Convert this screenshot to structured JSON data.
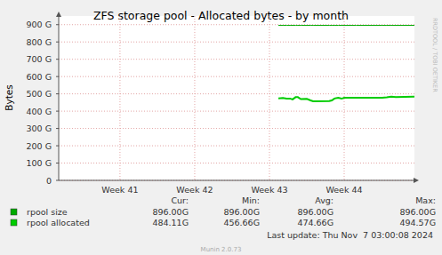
{
  "chart_data": {
    "type": "line",
    "title": "ZFS storage pool - Allocated bytes - by month",
    "y_label": "Bytes",
    "x": [
      43.62,
      43.68,
      43.73,
      43.775,
      43.81,
      43.85,
      43.88,
      43.92,
      44.0,
      44.05,
      44.085,
      44.3,
      44.335,
      44.37,
      44.42,
      44.465,
      44.5,
      44.66,
      45.01,
      45.07,
      45.13,
      45.19,
      45.44
    ],
    "xlim": [
      40.68,
      45.44
    ],
    "xticks": [
      {
        "value": 41.5,
        "label": "Week 41"
      },
      {
        "value": 42.5,
        "label": "Week 42"
      },
      {
        "value": 43.5,
        "label": "Week 43"
      },
      {
        "value": 44.5,
        "label": "Week 44"
      }
    ],
    "ylim": [
      0,
      950
    ],
    "yticks": [
      0,
      {
        "value": 100,
        "label": "100 G"
      },
      {
        "value": 200,
        "label": "200 G"
      },
      {
        "value": 300,
        "label": "300 G"
      },
      {
        "value": 400,
        "label": "400 G"
      },
      {
        "value": 500,
        "label": "500 G"
      },
      {
        "value": 600,
        "label": "600 G"
      },
      {
        "value": 700,
        "label": "700 G"
      },
      {
        "value": 800,
        "label": "800 G"
      },
      {
        "value": 900,
        "label": "900 G"
      }
    ],
    "grid": true,
    "stats_headers": [
      "Cur:",
      "Min:",
      "Avg:",
      "Max:"
    ],
    "series": [
      {
        "name": "rpool size",
        "color": "#00aa00",
        "values": [
          896,
          896,
          896,
          896,
          896,
          896,
          896,
          896,
          896,
          896,
          896,
          896,
          896,
          896,
          896,
          896,
          896,
          896,
          896,
          896,
          896,
          896,
          896
        ],
        "stats": [
          "896.00G",
          "896.00G",
          "896.00G",
          "896.00G"
        ]
      },
      {
        "name": "rpool allocated",
        "color": "#00cc00",
        "values": [
          474,
          476,
          472,
          473,
          468,
          481,
          481,
          470,
          471,
          462,
          457,
          458,
          462,
          473,
          477,
          472,
          477,
          477,
          477,
          480,
          484,
          482,
          484.11
        ],
        "stats": [
          "484.11G",
          "456.66G",
          "474.66G",
          "494.57G"
        ]
      }
    ],
    "last_update": "Last update: Thu Nov  7 03:00:08 2024",
    "credit": "Munin 2.0.73",
    "watermark": "RRDTOOL / TOBI OETIKER"
  }
}
